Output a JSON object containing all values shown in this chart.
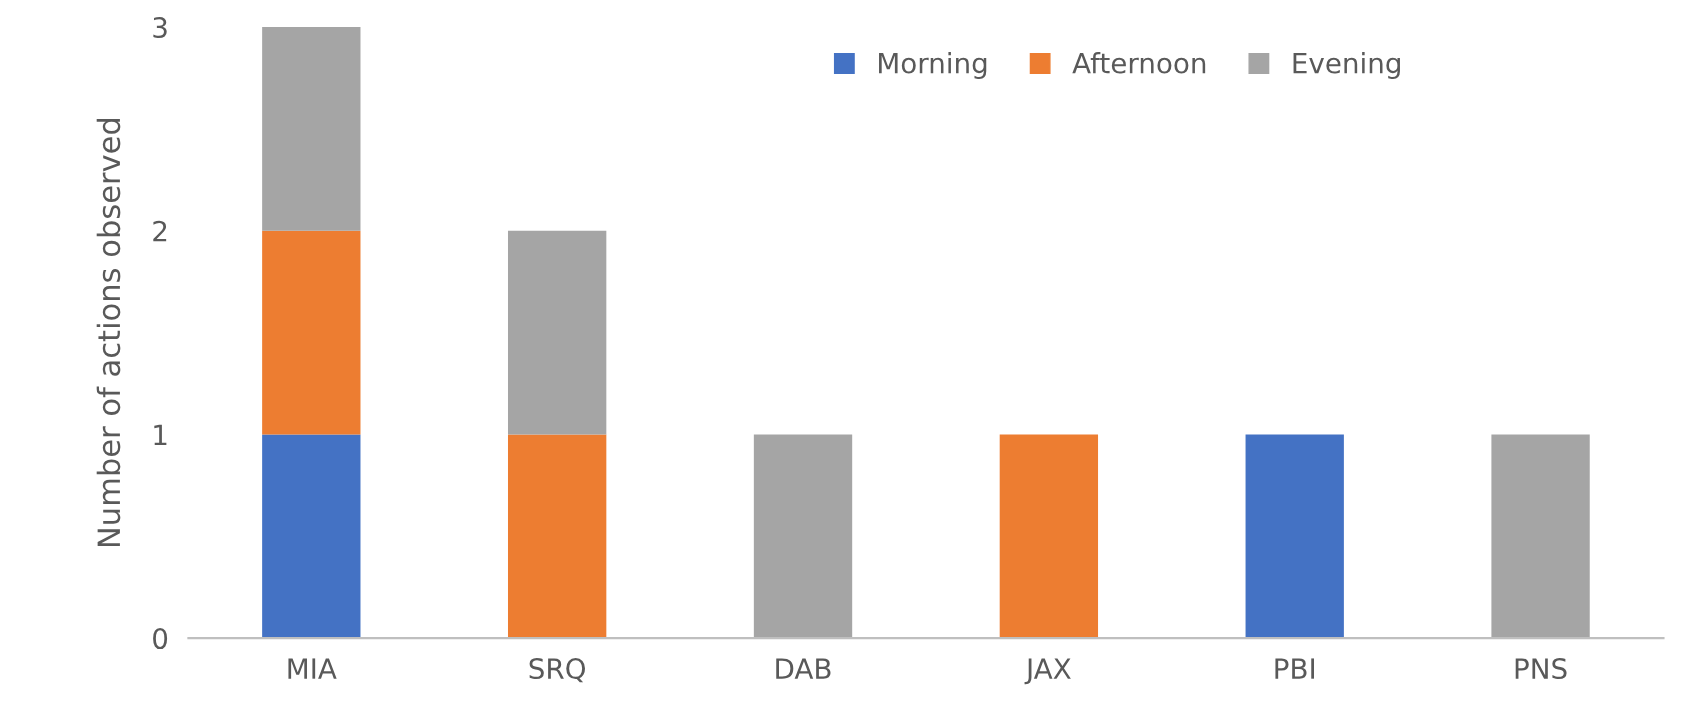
{
  "chart_data": {
    "type": "bar",
    "stacked": true,
    "ylabel": "Number of actions observed",
    "categories": [
      "MIA",
      "SRQ",
      "DAB",
      "JAX",
      "PBI",
      "PNS"
    ],
    "series": [
      {
        "name": "Morning",
        "color": "#4472c4",
        "values": [
          1,
          0,
          0,
          0,
          1,
          0
        ]
      },
      {
        "name": "Afternoon",
        "color": "#ed7d31",
        "values": [
          1,
          1,
          0,
          1,
          0,
          0
        ]
      },
      {
        "name": "Evening",
        "color": "#a5a5a5",
        "values": [
          1,
          1,
          1,
          0,
          0,
          1
        ]
      }
    ],
    "ylim": [
      0,
      3
    ],
    "yticks": [
      0,
      1,
      2,
      3
    ],
    "grid": false,
    "legend": "top right"
  }
}
